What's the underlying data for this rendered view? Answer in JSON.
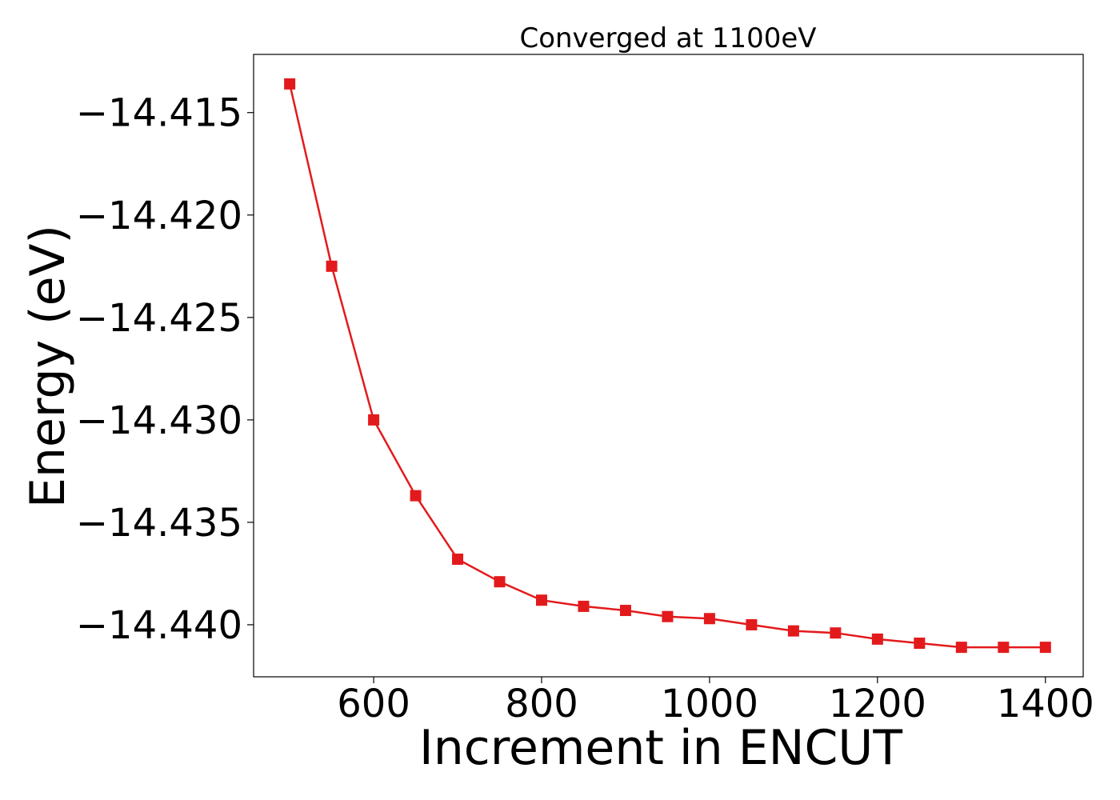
{
  "chart_data": {
    "type": "line",
    "title": "Converged at 1100eV",
    "xlabel": "Increment in ENCUT",
    "ylabel": "Energy (eV)",
    "x": [
      500,
      550,
      600,
      650,
      700,
      750,
      800,
      850,
      900,
      950,
      1000,
      1050,
      1100,
      1150,
      1200,
      1250,
      1300,
      1350,
      1400
    ],
    "series": [
      {
        "values": [
          -14.4136,
          -14.4225,
          -14.43,
          -14.4337,
          -14.4368,
          -14.4379,
          -14.4388,
          -14.4391,
          -14.4393,
          -14.4396,
          -14.4397,
          -14.44,
          -14.4403,
          -14.4404,
          -14.4407,
          -14.4409,
          -14.4411,
          -14.4411,
          -14.4411
        ],
        "color": "#e31a1c",
        "marker": "square"
      }
    ],
    "xlim": [
      457,
      1445
    ],
    "ylim": [
      -14.44254,
      -14.41216
    ],
    "xticks": [
      600,
      800,
      1000,
      1200,
      1400
    ],
    "xtick_labels": [
      "600",
      "800",
      "1000",
      "1200",
      "1400"
    ],
    "yticks": [
      -14.415,
      -14.42,
      -14.425,
      -14.43,
      -14.435,
      -14.44
    ],
    "ytick_labels": [
      "−14.415",
      "−14.420",
      "−14.425",
      "−14.430",
      "−14.435",
      "−14.440"
    ],
    "grid": false,
    "legend": "none"
  }
}
